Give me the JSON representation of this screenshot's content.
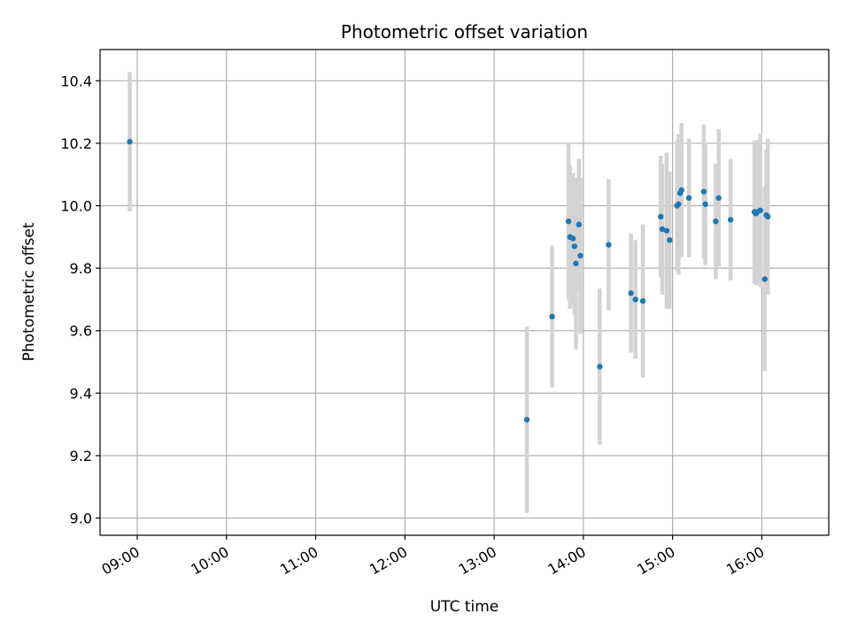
{
  "chart_data": {
    "type": "scatter",
    "title": "Photometric offset variation",
    "xlabel": "UTC time",
    "ylabel": "Photometric offset",
    "x_unit": "UTC time (HH:MM)",
    "xlim": [
      "08:35",
      "16:45"
    ],
    "ylim": [
      8.945,
      10.5
    ],
    "x_ticks": [
      "09:00",
      "10:00",
      "11:00",
      "12:00",
      "13:00",
      "14:00",
      "15:00",
      "16:00"
    ],
    "y_ticks": [
      "9.0",
      "9.2",
      "9.4",
      "9.6",
      "9.8",
      "10.0",
      "10.2",
      "10.4"
    ],
    "grid": true,
    "colors": {
      "point": "#1f77b4",
      "errorbar": "#d3d3d3",
      "grid": "#b0b0b0",
      "axes": "#000000"
    },
    "points": [
      {
        "x": "08:55",
        "y": 10.205,
        "err": 0.223
      },
      {
        "x": "13:22",
        "y": 9.315,
        "err": 0.298
      },
      {
        "x": "13:39",
        "y": 9.645,
        "err": 0.227
      },
      {
        "x": "13:50",
        "y": 9.95,
        "err": 0.25
      },
      {
        "x": "13:51",
        "y": 9.9,
        "err": 0.23
      },
      {
        "x": "13:53",
        "y": 9.895,
        "err": 0.21
      },
      {
        "x": "13:54",
        "y": 9.87,
        "err": 0.22
      },
      {
        "x": "13:55",
        "y": 9.815,
        "err": 0.275
      },
      {
        "x": "13:57",
        "y": 9.94,
        "err": 0.21
      },
      {
        "x": "13:58",
        "y": 9.84,
        "err": 0.25
      },
      {
        "x": "14:11",
        "y": 9.485,
        "err": 0.25
      },
      {
        "x": "14:17",
        "y": 9.875,
        "err": 0.21
      },
      {
        "x": "14:32",
        "y": 9.72,
        "err": 0.19
      },
      {
        "x": "14:35",
        "y": 9.7,
        "err": 0.19
      },
      {
        "x": "14:40",
        "y": 9.695,
        "err": 0.245
      },
      {
        "x": "14:52",
        "y": 9.965,
        "err": 0.195
      },
      {
        "x": "14:53",
        "y": 9.925,
        "err": 0.21
      },
      {
        "x": "14:56",
        "y": 9.92,
        "err": 0.25
      },
      {
        "x": "14:58",
        "y": 9.89,
        "err": 0.22
      },
      {
        "x": "15:03",
        "y": 10.0,
        "err": 0.21
      },
      {
        "x": "15:04",
        "y": 10.005,
        "err": 0.225
      },
      {
        "x": "15:05",
        "y": 10.04,
        "err": 0.19
      },
      {
        "x": "15:06",
        "y": 10.05,
        "err": 0.215
      },
      {
        "x": "15:11",
        "y": 10.025,
        "err": 0.19
      },
      {
        "x": "15:21",
        "y": 10.045,
        "err": 0.215
      },
      {
        "x": "15:22",
        "y": 10.005,
        "err": 0.195
      },
      {
        "x": "15:29",
        "y": 9.95,
        "err": 0.185
      },
      {
        "x": "15:31",
        "y": 10.025,
        "err": 0.22
      },
      {
        "x": "15:39",
        "y": 9.955,
        "err": 0.195
      },
      {
        "x": "15:55",
        "y": 9.98,
        "err": 0.23
      },
      {
        "x": "15:56",
        "y": 9.975,
        "err": 0.23
      },
      {
        "x": "15:57",
        "y": 9.98,
        "err": 0.23
      },
      {
        "x": "15:59",
        "y": 9.985,
        "err": 0.245
      },
      {
        "x": "16:02",
        "y": 9.765,
        "err": 0.295
      },
      {
        "x": "16:03",
        "y": 9.97,
        "err": 0.21
      },
      {
        "x": "16:04",
        "y": 9.965,
        "err": 0.25
      }
    ]
  }
}
